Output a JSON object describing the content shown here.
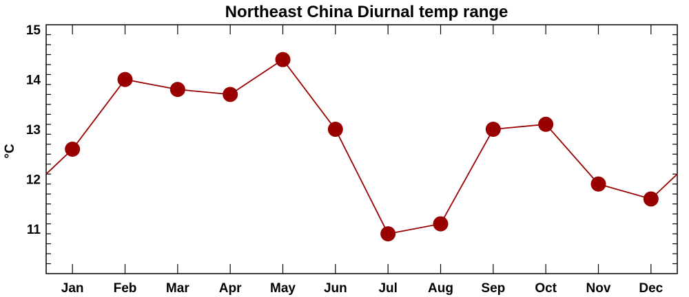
{
  "chart_data": {
    "type": "line",
    "title": "Northeast China Diurnal temp range",
    "ylabel": "°C",
    "xlabel": "",
    "categories": [
      "Jan",
      "Feb",
      "Mar",
      "Apr",
      "May",
      "Jun",
      "Jul",
      "Aug",
      "Sep",
      "Oct",
      "Nov",
      "Dec"
    ],
    "values": [
      12.6,
      14.0,
      13.8,
      13.7,
      14.4,
      13.0,
      10.9,
      11.1,
      13.0,
      13.1,
      11.9,
      11.6
    ],
    "ylim": [
      10.1,
      15.1
    ],
    "yticks": [
      11,
      12,
      13,
      14,
      15
    ],
    "y_minor_step": 0.2,
    "cyclic": true,
    "grid": false,
    "colors": {
      "marker": "#990000",
      "line": "#990000"
    }
  }
}
